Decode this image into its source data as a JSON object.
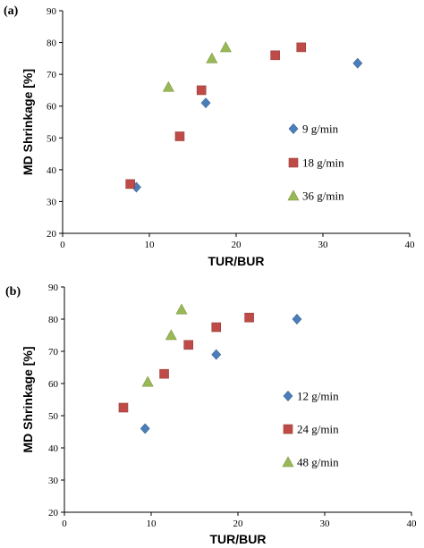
{
  "chart_data": [
    {
      "type": "scatter",
      "panel_label": "(a)",
      "xlabel": "TUR/BUR",
      "ylabel": "MD Shrinkage [%]",
      "xlim": [
        0,
        40
      ],
      "ylim": [
        20,
        90
      ],
      "xticks": [
        0,
        10,
        20,
        30,
        40
      ],
      "yticks": [
        20,
        30,
        40,
        50,
        60,
        70,
        80,
        90
      ],
      "legend_position": "center-right",
      "series": [
        {
          "name": "9 g/min",
          "marker": "diamond",
          "color": "#4a7ebb",
          "points": [
            [
              8.5,
              34.5
            ],
            [
              16.5,
              61
            ],
            [
              34,
              73.5
            ]
          ]
        },
        {
          "name": "18 g/min",
          "marker": "square",
          "color": "#be4b48",
          "points": [
            [
              7.8,
              35.5
            ],
            [
              13.5,
              50.5
            ],
            [
              16,
              65
            ],
            [
              24.5,
              76
            ],
            [
              27.5,
              78.5
            ]
          ]
        },
        {
          "name": "36 g/min",
          "marker": "triangle",
          "color": "#98b954",
          "points": [
            [
              12.2,
              66
            ],
            [
              17.2,
              75
            ],
            [
              18.8,
              78.5
            ]
          ]
        }
      ]
    },
    {
      "type": "scatter",
      "panel_label": "(b)",
      "xlabel": "TUR/BUR",
      "ylabel": "MD Shrinkage [%]",
      "xlim": [
        0,
        40
      ],
      "ylim": [
        20,
        90
      ],
      "xticks": [
        0,
        10,
        20,
        30,
        40
      ],
      "yticks": [
        20,
        30,
        40,
        50,
        60,
        70,
        80,
        90
      ],
      "legend_position": "center-right",
      "series": [
        {
          "name": "12 g/min",
          "marker": "diamond",
          "color": "#4a7ebb",
          "points": [
            [
              9.3,
              46
            ],
            [
              17.5,
              69
            ],
            [
              26.8,
              80
            ]
          ]
        },
        {
          "name": "24 g/min",
          "marker": "square",
          "color": "#be4b48",
          "points": [
            [
              6.8,
              52.5
            ],
            [
              11.5,
              63
            ],
            [
              14.3,
              72
            ],
            [
              17.5,
              77.5
            ],
            [
              21.3,
              80.5
            ]
          ]
        },
        {
          "name": "48 g/min",
          "marker": "triangle",
          "color": "#98b954",
          "points": [
            [
              9.6,
              60.5
            ],
            [
              12.3,
              75
            ],
            [
              13.5,
              83
            ]
          ]
        }
      ]
    }
  ]
}
